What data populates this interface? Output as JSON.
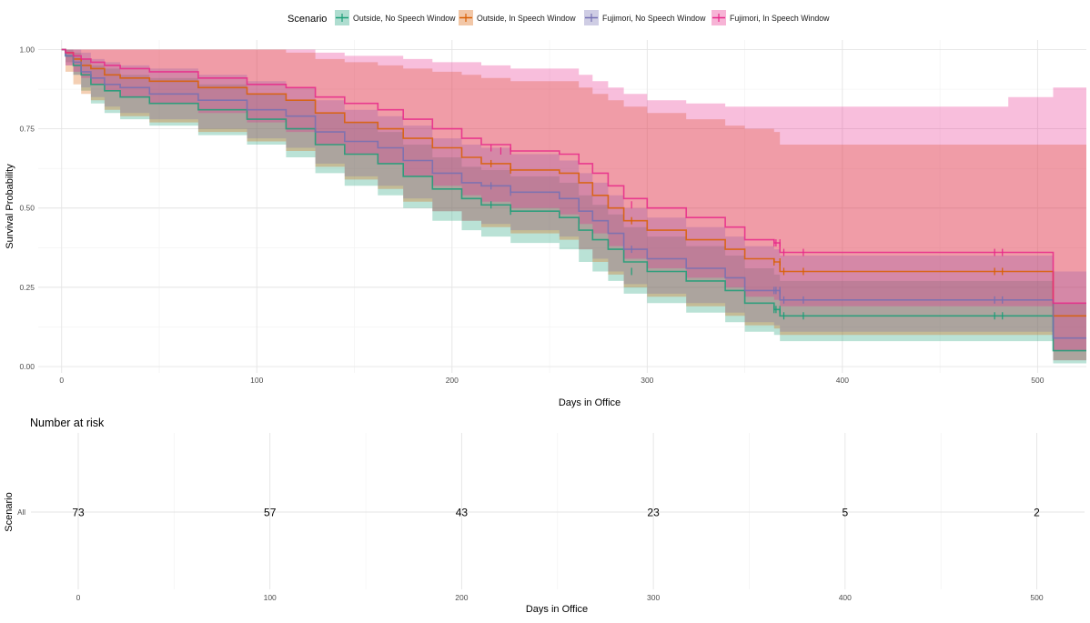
{
  "legend": {
    "title": "Scenario",
    "items": [
      {
        "label": "Outside, No Speech Window",
        "color": "#1B9E77"
      },
      {
        "label": "Outside, In Speech Window",
        "color": "#D95F02"
      },
      {
        "label": "Fujimori, No Speech Window",
        "color": "#7570B3"
      },
      {
        "label": "Fujimori, In Speech Window",
        "color": "#E7298A"
      }
    ]
  },
  "chart_data": [
    {
      "type": "line",
      "subtype": "kaplan-meier-step-with-confidence-bands",
      "xlabel": "Days in Office",
      "ylabel": "Survival Probability",
      "xlim": [
        -12,
        525
      ],
      "ylim": [
        -0.02,
        1.03
      ],
      "x_ticks": [
        0,
        100,
        200,
        300,
        400,
        500
      ],
      "x_tick_labels": [
        "0",
        "100",
        "200",
        "300",
        "400",
        "500"
      ],
      "y_ticks": [
        0,
        0.25,
        0.5,
        0.75,
        1
      ],
      "y_tick_labels": [
        "0.00",
        "0.25",
        "0.50",
        "0.75",
        "1.00"
      ],
      "grid": true,
      "legend_position": "top",
      "series": [
        {
          "name": "Outside, No Speech Window",
          "color": "#1B9E77",
          "x": [
            0,
            2,
            6,
            10,
            15,
            22,
            30,
            45,
            70,
            95,
            115,
            130,
            145,
            162,
            175,
            190,
            205,
            215,
            230,
            255,
            265,
            272,
            280,
            288,
            300,
            320,
            340,
            350,
            365,
            368,
            485,
            508,
            525
          ],
          "y": [
            1.0,
            0.98,
            0.95,
            0.92,
            0.89,
            0.87,
            0.85,
            0.83,
            0.81,
            0.78,
            0.75,
            0.7,
            0.67,
            0.64,
            0.6,
            0.56,
            0.53,
            0.51,
            0.49,
            0.47,
            0.43,
            0.4,
            0.37,
            0.33,
            0.3,
            0.27,
            0.24,
            0.2,
            0.18,
            0.16,
            0.16,
            0.05,
            0.05
          ],
          "lower": [
            1.0,
            0.96,
            0.92,
            0.87,
            0.83,
            0.8,
            0.78,
            0.76,
            0.73,
            0.7,
            0.66,
            0.61,
            0.57,
            0.54,
            0.5,
            0.46,
            0.43,
            0.41,
            0.39,
            0.37,
            0.33,
            0.3,
            0.27,
            0.23,
            0.2,
            0.17,
            0.14,
            0.11,
            0.1,
            0.08,
            0.08,
            0.01,
            0.01
          ],
          "upper": [
            1.0,
            1.0,
            0.99,
            0.97,
            0.95,
            0.94,
            0.92,
            0.91,
            0.89,
            0.86,
            0.84,
            0.8,
            0.77,
            0.74,
            0.7,
            0.66,
            0.63,
            0.62,
            0.6,
            0.58,
            0.54,
            0.51,
            0.48,
            0.44,
            0.41,
            0.38,
            0.35,
            0.31,
            0.29,
            0.27,
            0.27,
            0.2,
            0.2
          ],
          "censor_x": [
            220,
            230,
            292,
            365,
            366,
            368,
            370,
            380,
            478,
            482
          ],
          "censor_y": [
            0.51,
            0.49,
            0.3,
            0.18,
            0.18,
            0.18,
            0.16,
            0.16,
            0.16,
            0.16
          ]
        },
        {
          "name": "Outside, In Speech Window",
          "color": "#D95F02",
          "x": [
            0,
            2,
            6,
            10,
            15,
            22,
            30,
            45,
            70,
            95,
            115,
            130,
            145,
            162,
            175,
            190,
            205,
            215,
            230,
            255,
            265,
            272,
            280,
            288,
            300,
            320,
            340,
            350,
            365,
            368,
            485,
            508,
            525
          ],
          "y": [
            1.0,
            0.99,
            0.97,
            0.95,
            0.94,
            0.92,
            0.91,
            0.9,
            0.88,
            0.86,
            0.84,
            0.8,
            0.77,
            0.75,
            0.72,
            0.69,
            0.66,
            0.64,
            0.62,
            0.61,
            0.58,
            0.54,
            0.5,
            0.46,
            0.43,
            0.4,
            0.37,
            0.34,
            0.33,
            0.3,
            0.3,
            0.16,
            0.16
          ],
          "lower": [
            1.0,
            0.93,
            0.89,
            0.86,
            0.84,
            0.81,
            0.79,
            0.77,
            0.74,
            0.71,
            0.68,
            0.63,
            0.59,
            0.56,
            0.52,
            0.49,
            0.46,
            0.44,
            0.42,
            0.4,
            0.37,
            0.33,
            0.29,
            0.25,
            0.22,
            0.19,
            0.16,
            0.13,
            0.12,
            0.1,
            0.1,
            0.02,
            0.02
          ],
          "upper": [
            1.0,
            1.0,
            1.0,
            1.0,
            1.0,
            1.0,
            1.0,
            1.0,
            1.0,
            1.0,
            0.99,
            0.97,
            0.96,
            0.95,
            0.94,
            0.93,
            0.92,
            0.91,
            0.9,
            0.9,
            0.88,
            0.86,
            0.84,
            0.82,
            0.8,
            0.78,
            0.76,
            0.75,
            0.74,
            0.7,
            0.7,
            0.7,
            0.7
          ],
          "censor_x": [
            220,
            230,
            292,
            365,
            368,
            370,
            380,
            478,
            482
          ],
          "censor_y": [
            0.64,
            0.62,
            0.46,
            0.33,
            0.33,
            0.3,
            0.3,
            0.3,
            0.3
          ]
        },
        {
          "name": "Fujimori, No Speech Window",
          "color": "#7570B3",
          "x": [
            0,
            2,
            6,
            10,
            15,
            22,
            30,
            45,
            70,
            95,
            115,
            130,
            145,
            162,
            175,
            190,
            205,
            215,
            230,
            255,
            265,
            272,
            280,
            288,
            300,
            320,
            340,
            350,
            365,
            368,
            485,
            508,
            525
          ],
          "y": [
            1.0,
            0.98,
            0.96,
            0.93,
            0.91,
            0.89,
            0.88,
            0.86,
            0.84,
            0.81,
            0.79,
            0.74,
            0.71,
            0.69,
            0.65,
            0.61,
            0.58,
            0.57,
            0.55,
            0.53,
            0.49,
            0.46,
            0.42,
            0.37,
            0.34,
            0.31,
            0.28,
            0.24,
            0.24,
            0.21,
            0.21,
            0.09,
            0.09
          ],
          "lower": [
            1.0,
            0.95,
            0.92,
            0.88,
            0.85,
            0.82,
            0.8,
            0.78,
            0.75,
            0.72,
            0.69,
            0.64,
            0.6,
            0.57,
            0.53,
            0.49,
            0.46,
            0.45,
            0.43,
            0.41,
            0.37,
            0.34,
            0.3,
            0.26,
            0.23,
            0.2,
            0.17,
            0.14,
            0.13,
            0.11,
            0.11,
            0.02,
            0.02
          ],
          "upper": [
            1.0,
            1.0,
            1.0,
            0.99,
            0.97,
            0.96,
            0.95,
            0.94,
            0.92,
            0.9,
            0.88,
            0.84,
            0.81,
            0.79,
            0.76,
            0.72,
            0.7,
            0.69,
            0.67,
            0.65,
            0.61,
            0.58,
            0.54,
            0.5,
            0.47,
            0.44,
            0.41,
            0.38,
            0.37,
            0.35,
            0.35,
            0.3,
            0.3
          ],
          "censor_x": [
            220,
            230,
            292,
            365,
            366,
            368,
            370,
            380,
            478,
            482
          ],
          "censor_y": [
            0.57,
            0.55,
            0.37,
            0.24,
            0.24,
            0.24,
            0.21,
            0.21,
            0.21,
            0.21
          ]
        },
        {
          "name": "Fujimori, In Speech Window",
          "color": "#E7298A",
          "x": [
            0,
            2,
            6,
            10,
            15,
            22,
            30,
            45,
            70,
            95,
            115,
            130,
            145,
            162,
            175,
            190,
            205,
            215,
            230,
            255,
            265,
            272,
            280,
            288,
            300,
            320,
            340,
            350,
            365,
            368,
            485,
            508,
            525
          ],
          "y": [
            1.0,
            0.99,
            0.98,
            0.97,
            0.96,
            0.95,
            0.94,
            0.93,
            0.91,
            0.89,
            0.88,
            0.85,
            0.83,
            0.81,
            0.78,
            0.75,
            0.72,
            0.7,
            0.68,
            0.67,
            0.64,
            0.61,
            0.57,
            0.53,
            0.5,
            0.47,
            0.44,
            0.4,
            0.39,
            0.36,
            0.36,
            0.2,
            0.2
          ],
          "lower": [
            1.0,
            0.95,
            0.93,
            0.91,
            0.89,
            0.87,
            0.85,
            0.83,
            0.8,
            0.77,
            0.74,
            0.7,
            0.67,
            0.64,
            0.6,
            0.57,
            0.54,
            0.52,
            0.5,
            0.48,
            0.45,
            0.42,
            0.38,
            0.34,
            0.31,
            0.28,
            0.25,
            0.22,
            0.21,
            0.19,
            0.19,
            0.05,
            0.05
          ],
          "upper": [
            1.0,
            1.0,
            1.0,
            1.0,
            1.0,
            1.0,
            1.0,
            1.0,
            1.0,
            1.0,
            1.0,
            0.99,
            0.98,
            0.98,
            0.97,
            0.96,
            0.96,
            0.95,
            0.94,
            0.94,
            0.92,
            0.9,
            0.88,
            0.86,
            0.84,
            0.83,
            0.82,
            0.82,
            0.82,
            0.82,
            0.85,
            0.88,
            0.88
          ],
          "censor_x": [
            220,
            225,
            230,
            292,
            365,
            366,
            368,
            370,
            380,
            478,
            482
          ],
          "censor_y": [
            0.69,
            0.68,
            0.68,
            0.51,
            0.39,
            0.39,
            0.39,
            0.36,
            0.36,
            0.36,
            0.36
          ]
        }
      ]
    },
    {
      "type": "table",
      "title": "Number at risk",
      "xlabel": "Days in Office",
      "ylabel": "Scenario",
      "row_labels": [
        "All"
      ],
      "x_ticks": [
        0,
        100,
        200,
        300,
        400,
        500
      ],
      "x_tick_labels": [
        "0",
        "100",
        "200",
        "300",
        "400",
        "500"
      ],
      "x": [
        0,
        100,
        200,
        300,
        400,
        500
      ],
      "values": [
        "73",
        "57",
        "43",
        "23",
        "5",
        "2"
      ]
    }
  ]
}
